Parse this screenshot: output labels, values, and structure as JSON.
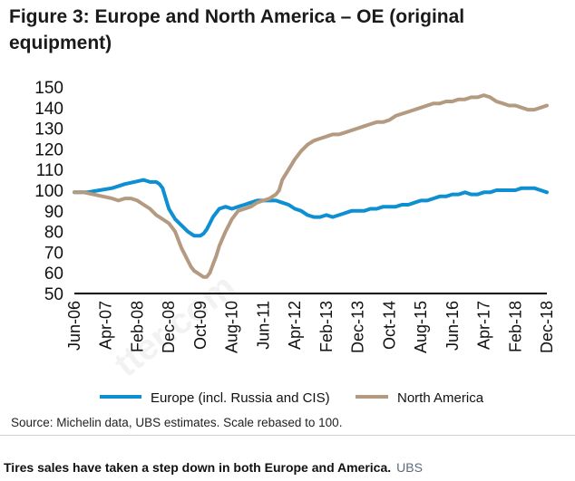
{
  "title": "Figure 3: Europe and North America – OE (original equipment)",
  "source": "Source:  Michelin data, UBS estimates. Scale rebased to 100.",
  "caption": "Tires sales have taken a step down in both Europe and America.",
  "credit": "UBS",
  "watermark": "tter.com",
  "colors": {
    "europe": "#0d8fd1",
    "north_america": "#b39a80",
    "axis": "#000000"
  },
  "chart_data": {
    "type": "line",
    "title": "Figure 3: Europe and North America – OE (original equipment)",
    "xlabel": "",
    "ylabel": "",
    "ylim": [
      50,
      150
    ],
    "yticks": [
      50,
      60,
      70,
      80,
      90,
      100,
      110,
      120,
      130,
      140,
      150
    ],
    "x_range_months": [
      0,
      150
    ],
    "x_tick_labels": [
      "Jun-06",
      "Apr-07",
      "Feb-08",
      "Dec-08",
      "Oct-09",
      "Aug-10",
      "Jun-11",
      "Apr-12",
      "Feb-13",
      "Dec-13",
      "Oct-14",
      "Aug-15",
      "Jun-16",
      "Apr-17",
      "Feb-18",
      "Dec-18"
    ],
    "x_tick_months": [
      0,
      10,
      20,
      30,
      40,
      50,
      60,
      70,
      80,
      90,
      100,
      110,
      120,
      130,
      140,
      150
    ],
    "legend_position": "bottom",
    "series": [
      {
        "name": "Europe (incl. Russia and CIS)",
        "color": "#0d8fd1",
        "x": [
          0,
          4,
          8,
          12,
          16,
          19,
          22,
          24,
          26,
          27,
          28,
          29,
          30,
          32,
          34,
          36,
          38,
          40,
          41,
          42,
          43,
          44,
          46,
          48,
          50,
          52,
          54,
          56,
          58,
          60,
          62,
          64,
          66,
          68,
          70,
          72,
          74,
          76,
          78,
          80,
          82,
          84,
          86,
          88,
          90,
          92,
          94,
          96,
          98,
          100,
          102,
          104,
          106,
          108,
          110,
          112,
          114,
          116,
          118,
          120,
          122,
          124,
          126,
          128,
          130,
          132,
          134,
          136,
          138,
          140,
          142,
          144,
          146,
          148,
          150
        ],
        "y": [
          99,
          99,
          100,
          101,
          103,
          104,
          105,
          104,
          104,
          103,
          101,
          96,
          91,
          86,
          83,
          80,
          78,
          78,
          79,
          81,
          84,
          87,
          91,
          92,
          91,
          92,
          93,
          94,
          95,
          95,
          95,
          95,
          94,
          93,
          91,
          90,
          88,
          87,
          87,
          88,
          87,
          88,
          89,
          90,
          90,
          90,
          91,
          91,
          92,
          92,
          92,
          93,
          93,
          94,
          95,
          95,
          96,
          97,
          97,
          98,
          98,
          99,
          98,
          98,
          99,
          99,
          100,
          100,
          100,
          100,
          101,
          101,
          101,
          100,
          99
        ]
      },
      {
        "name": "North America",
        "color": "#b39a80",
        "x": [
          0,
          3,
          6,
          9,
          12,
          14,
          16,
          18,
          20,
          22,
          24,
          26,
          28,
          30,
          32,
          33,
          34,
          35,
          36,
          37,
          38,
          39,
          40,
          41,
          42,
          43,
          44,
          45,
          46,
          48,
          50,
          52,
          54,
          56,
          58,
          60,
          62,
          64,
          65,
          66,
          68,
          70,
          72,
          74,
          76,
          78,
          80,
          82,
          84,
          86,
          88,
          90,
          92,
          94,
          96,
          98,
          100,
          102,
          104,
          106,
          108,
          110,
          112,
          114,
          116,
          118,
          120,
          122,
          124,
          126,
          128,
          130,
          132,
          134,
          136,
          138,
          140,
          142,
          144,
          146,
          148,
          150
        ],
        "y": [
          99,
          99,
          98,
          97,
          96,
          95,
          96,
          96,
          95,
          93,
          91,
          88,
          86,
          84,
          80,
          76,
          72,
          69,
          66,
          63,
          61,
          60,
          59,
          58,
          58,
          60,
          64,
          68,
          73,
          80,
          86,
          90,
          91,
          92,
          94,
          95,
          96,
          98,
          100,
          105,
          110,
          115,
          119,
          122,
          124,
          125,
          126,
          127,
          127,
          128,
          129,
          130,
          131,
          132,
          133,
          133,
          134,
          136,
          137,
          138,
          139,
          140,
          141,
          142,
          142,
          143,
          143,
          144,
          144,
          145,
          145,
          146,
          145,
          143,
          142,
          141,
          141,
          140,
          139,
          139,
          140,
          141
        ]
      }
    ]
  }
}
